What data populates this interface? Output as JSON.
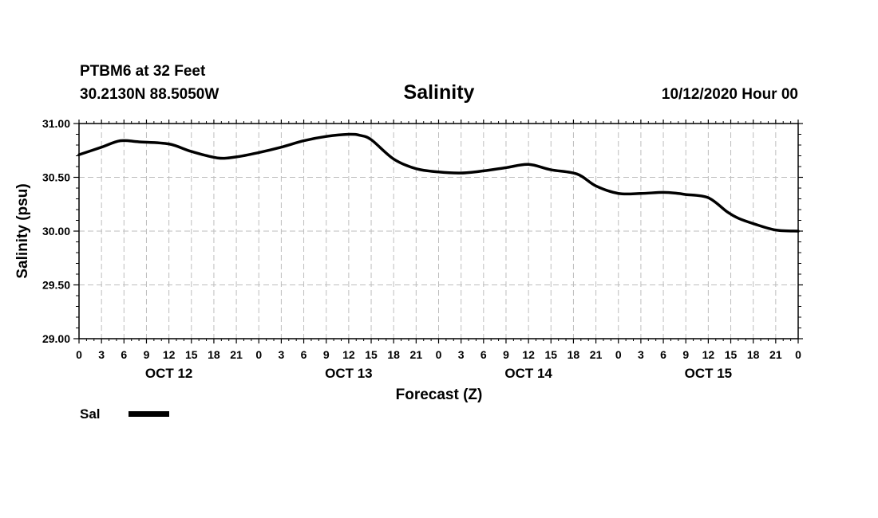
{
  "chart_data": {
    "type": "line",
    "title": "Salinity",
    "station": "PTBM6 at 32 Feet",
    "location": "30.2130N 88.5050W",
    "run": "10/12/2020 Hour 00",
    "xlabel": "Forecast (Z)",
    "ylabel": "Salinity (psu)",
    "ylim": [
      29.0,
      31.0
    ],
    "yticks": [
      "29.00",
      "29.50",
      "30.00",
      "30.50",
      "31.00"
    ],
    "xlim": [
      0,
      96
    ],
    "xticks": [
      "0",
      "3",
      "6",
      "9",
      "12",
      "15",
      "18",
      "21",
      "0",
      "3",
      "6",
      "9",
      "12",
      "15",
      "18",
      "21",
      "0",
      "3",
      "6",
      "9",
      "12",
      "15",
      "18",
      "21",
      "0",
      "3",
      "6",
      "9",
      "12",
      "15",
      "18",
      "21",
      "0"
    ],
    "days": [
      {
        "label": "OCT 12",
        "center_hour": 12
      },
      {
        "label": "OCT 13",
        "center_hour": 36
      },
      {
        "label": "OCT 14",
        "center_hour": 60
      },
      {
        "label": "OCT 15",
        "center_hour": 84
      }
    ],
    "grid": true,
    "legend": {
      "position": "bottom-left",
      "label": "Sal"
    },
    "series": [
      {
        "name": "Sal",
        "color": "#000000",
        "x": [
          0,
          3,
          5.5,
          8,
          12,
          15,
          18.5,
          21,
          24,
          27,
          30,
          33,
          36,
          37.5,
          39,
          42,
          45,
          48,
          51,
          54,
          57,
          60,
          63,
          66.5,
          69,
          72,
          75,
          78,
          80,
          81,
          84,
          86.5,
          88,
          90,
          93,
          96
        ],
        "y": [
          30.71,
          30.78,
          30.84,
          30.83,
          30.81,
          30.74,
          30.68,
          30.69,
          30.73,
          30.78,
          30.84,
          30.88,
          30.9,
          30.89,
          30.85,
          30.67,
          30.58,
          30.55,
          30.54,
          30.56,
          30.59,
          30.62,
          30.57,
          30.53,
          30.42,
          30.35,
          30.35,
          30.36,
          30.35,
          30.34,
          30.31,
          30.18,
          30.12,
          30.07,
          30.01,
          30.0
        ]
      }
    ]
  }
}
